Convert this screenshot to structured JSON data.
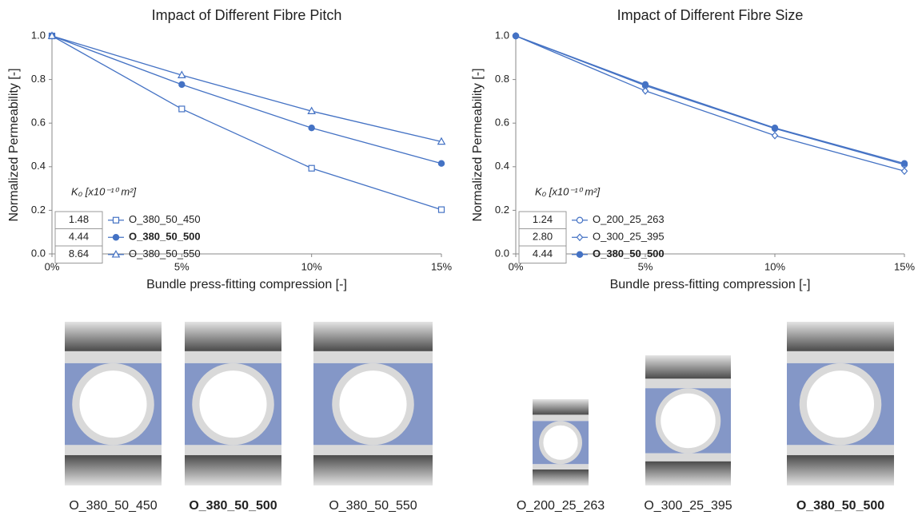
{
  "chart_data": [
    {
      "type": "line",
      "title": "Impact of Different Fibre Pitch",
      "x_label": "Bundle press-fitting compression [-]",
      "y_label": "Normalized Permeability [-]",
      "x": [
        0,
        5,
        10,
        15
      ],
      "xlim": [
        0,
        15
      ],
      "xticks": [
        {
          "value": 0,
          "label": "0%"
        },
        {
          "value": 5,
          "label": "5%"
        },
        {
          "value": 10,
          "label": "10%"
        },
        {
          "value": 15,
          "label": "15%"
        }
      ],
      "ylim": [
        0,
        1
      ],
      "yticks": [
        {
          "value": 0,
          "label": "0.0"
        },
        0.2,
        0.4,
        0.6,
        0.8,
        {
          "value": 1,
          "label": "1.0"
        }
      ],
      "legend_title": "K₀ [x10⁻¹⁰ m²]",
      "legend_position": "lower left",
      "series": [
        {
          "name": "O_380_50_450",
          "k0": "1.48",
          "color": "#4472c4",
          "marker": "square-open",
          "bold": false,
          "values": [
            1.0,
            0.665,
            0.393,
            0.203
          ]
        },
        {
          "name": "O_380_50_500",
          "k0": "4.44",
          "color": "#4472c4",
          "marker": "circle-filled",
          "bold": true,
          "values": [
            1.0,
            0.777,
            0.578,
            0.415
          ]
        },
        {
          "name": "O_380_50_550",
          "k0": "8.64",
          "color": "#4472c4",
          "marker": "triangle-open",
          "bold": false,
          "values": [
            1.0,
            0.82,
            0.655,
            0.515
          ]
        }
      ]
    },
    {
      "type": "line",
      "title": "Impact of Different Fibre Size",
      "x_label": "Bundle press-fitting compression [-]",
      "y_label": "Normalized Permeability [-]",
      "x": [
        0,
        5,
        10,
        15
      ],
      "xlim": [
        0,
        15
      ],
      "xticks": [
        {
          "value": 0,
          "label": "0%"
        },
        {
          "value": 5,
          "label": "5%"
        },
        {
          "value": 10,
          "label": "10%"
        },
        {
          "value": 15,
          "label": "15%"
        }
      ],
      "ylim": [
        0,
        1
      ],
      "yticks": [
        {
          "value": 0,
          "label": "0.0"
        },
        0.2,
        0.4,
        0.6,
        0.8,
        {
          "value": 1,
          "label": "1.0"
        }
      ],
      "legend_title": "K₀ [x10⁻¹⁰ m²]",
      "legend_position": "lower left",
      "series": [
        {
          "name": "O_200_25_263",
          "k0": "1.24",
          "color": "#4472c4",
          "marker": "circle-open",
          "bold": false,
          "values": [
            1.0,
            0.772,
            0.575,
            0.41
          ]
        },
        {
          "name": "O_300_25_395",
          "k0": "2.80",
          "color": "#4472c4",
          "marker": "diamond-open",
          "bold": false,
          "values": [
            1.0,
            0.748,
            0.543,
            0.38
          ]
        },
        {
          "name": "O_380_50_500",
          "k0": "4.44",
          "color": "#4472c4",
          "marker": "circle-filled",
          "bold": true,
          "values": [
            1.0,
            0.777,
            0.578,
            0.415
          ]
        }
      ]
    }
  ]
}
